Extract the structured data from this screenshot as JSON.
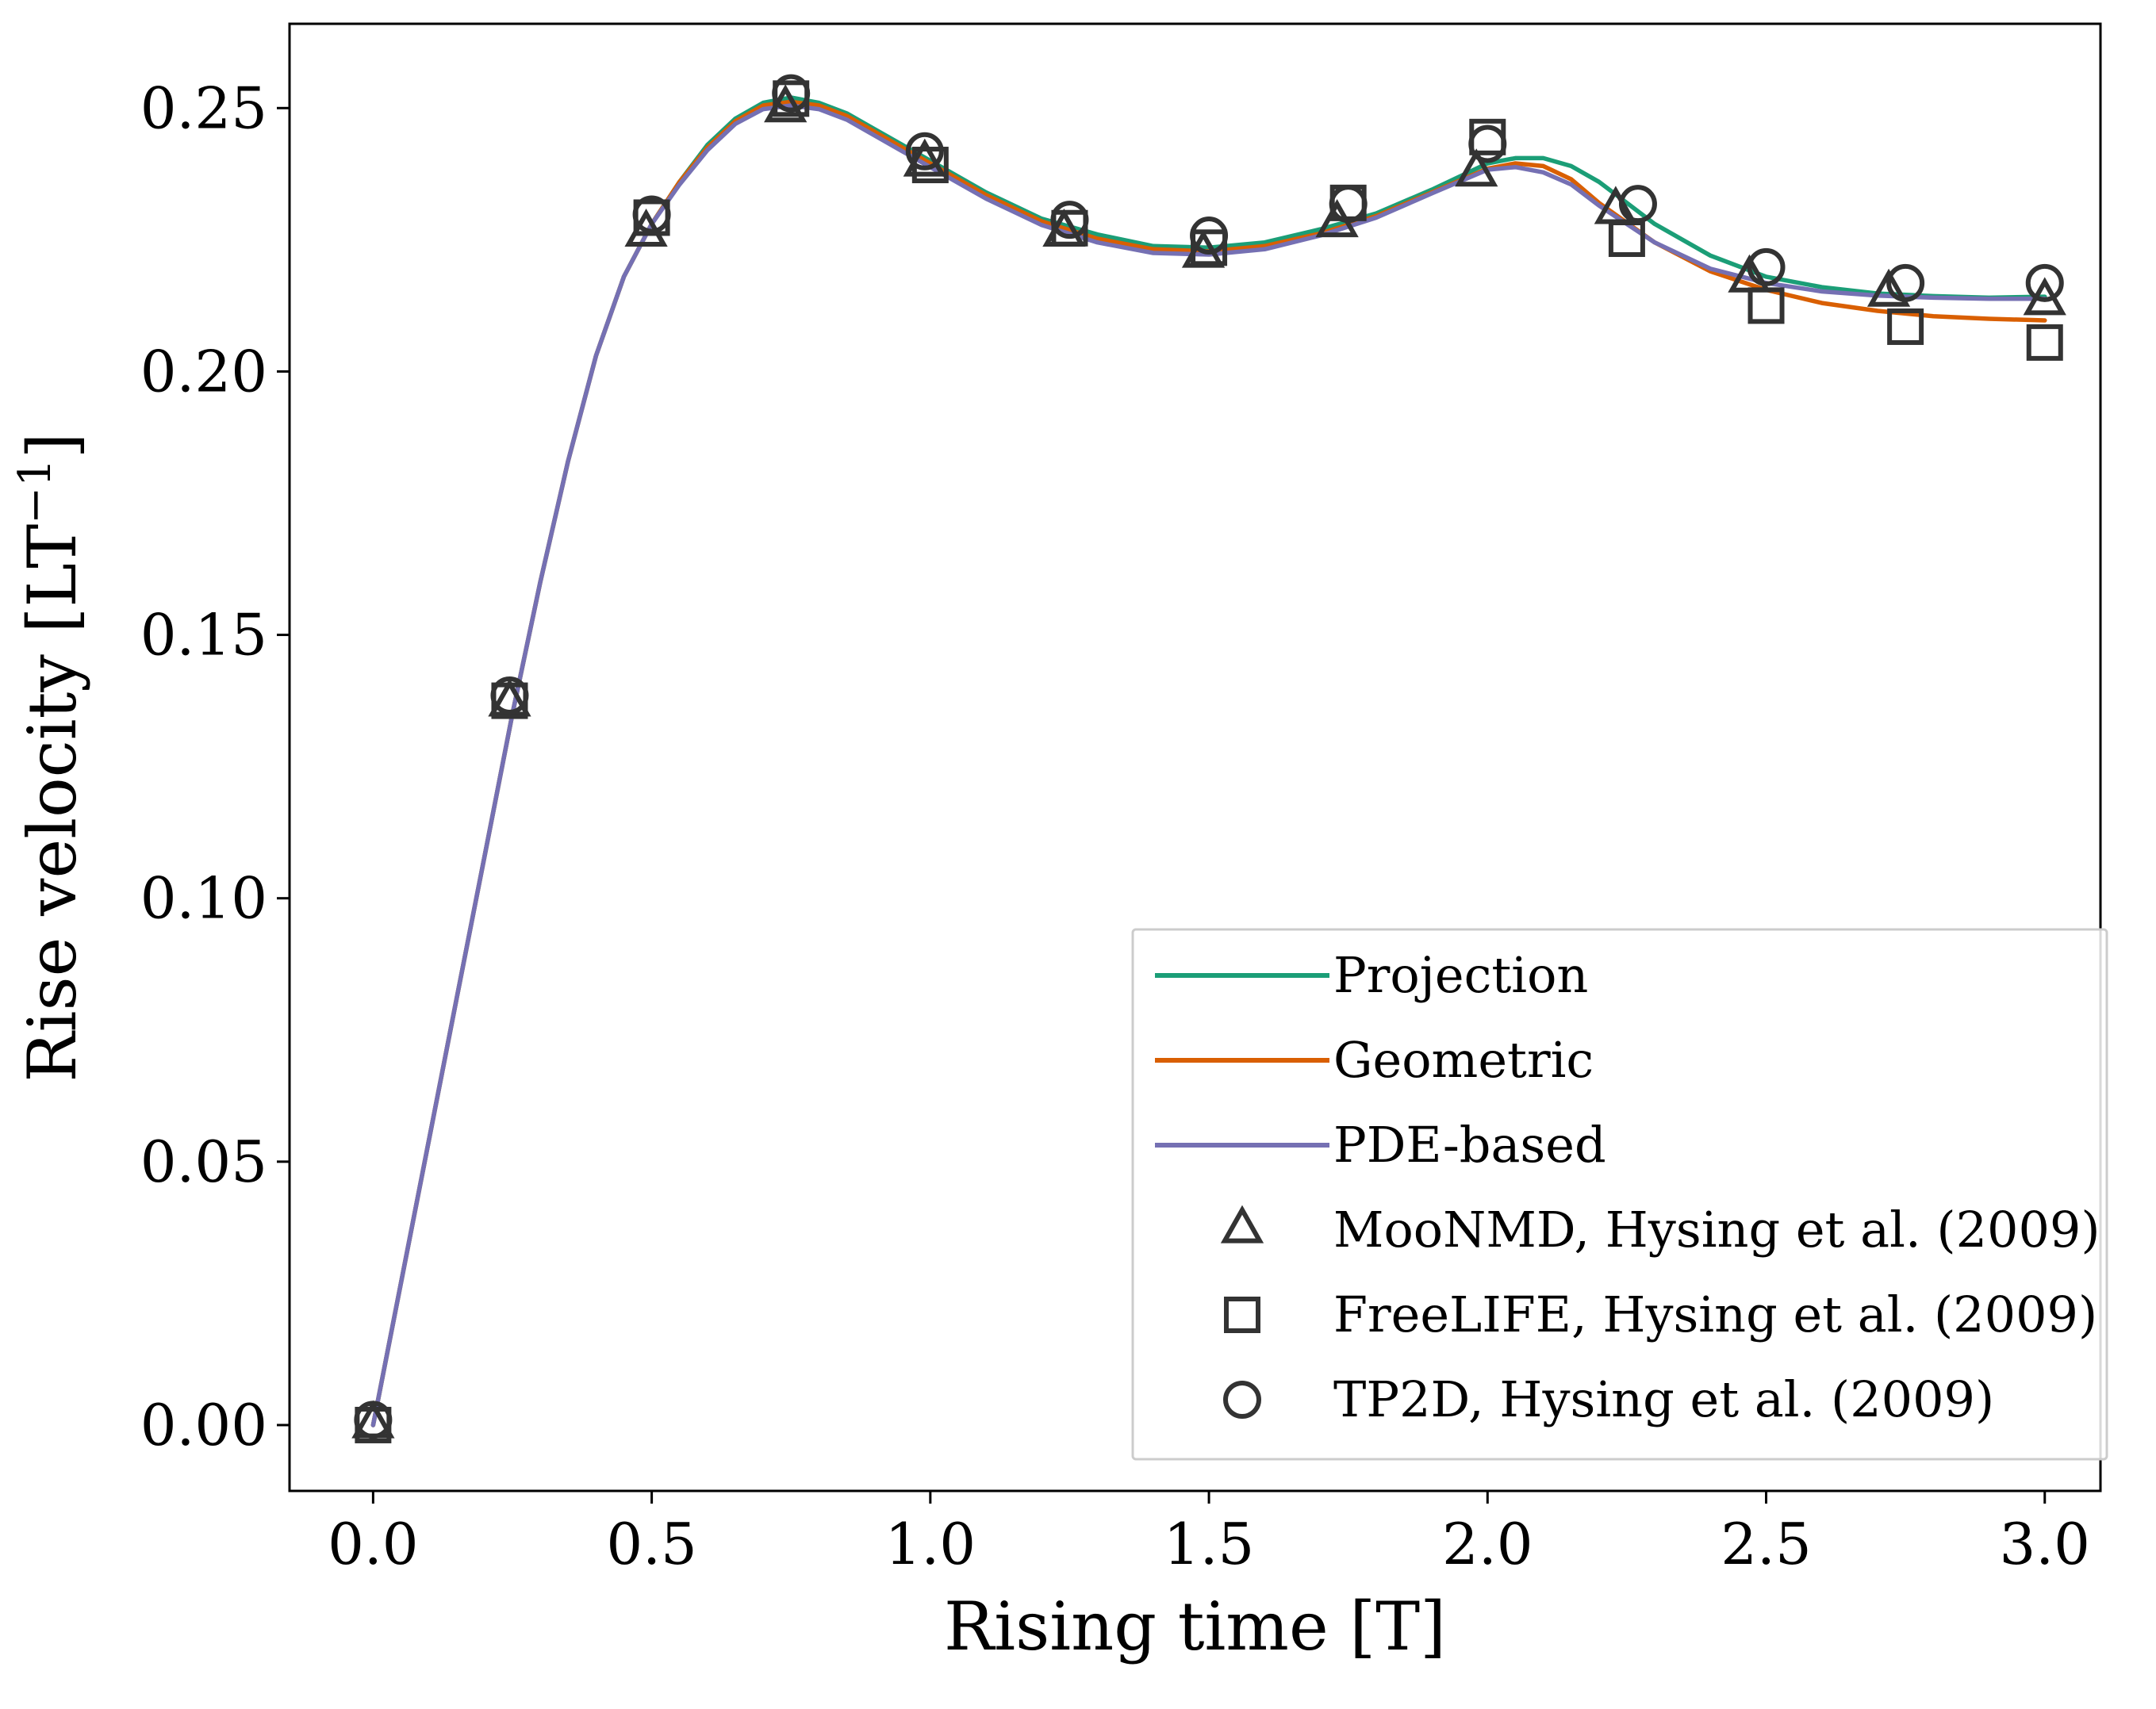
{
  "chart_data": {
    "type": "line",
    "title": "",
    "xlabel": "Rising time [T]",
    "ylabel": "Rise velocity [LT",
    "ylabel_sup": "−1",
    "ylabel_end": "]",
    "xlim": [
      -0.15,
      3.1
    ],
    "ylim": [
      -0.0125,
      0.266
    ],
    "xticks": [
      0.0,
      0.5,
      1.0,
      1.5,
      2.0,
      2.5,
      3.0
    ],
    "xtick_labels": [
      "0.0",
      "0.5",
      "1.0",
      "1.5",
      "2.0",
      "2.5",
      "3.0"
    ],
    "yticks": [
      0.0,
      0.05,
      0.1,
      0.15,
      0.2,
      0.25
    ],
    "ytick_labels": [
      "0.00",
      "0.05",
      "0.10",
      "0.15",
      "0.20",
      "0.25"
    ],
    "grid": false,
    "legend_position": "lower-right",
    "series": [
      {
        "name": "Projection",
        "kind": "line",
        "color": "#1b9e77",
        "points": [
          [
            0.0,
            0.0
          ],
          [
            0.05,
            0.027
          ],
          [
            0.1,
            0.054
          ],
          [
            0.15,
            0.081
          ],
          [
            0.2,
            0.108
          ],
          [
            0.25,
            0.135
          ],
          [
            0.3,
            0.16
          ],
          [
            0.35,
            0.183
          ],
          [
            0.4,
            0.203
          ],
          [
            0.45,
            0.218
          ],
          [
            0.5,
            0.228
          ],
          [
            0.55,
            0.236
          ],
          [
            0.6,
            0.243
          ],
          [
            0.65,
            0.248
          ],
          [
            0.7,
            0.251
          ],
          [
            0.75,
            0.252
          ],
          [
            0.8,
            0.251
          ],
          [
            0.85,
            0.249
          ],
          [
            0.9,
            0.246
          ],
          [
            0.95,
            0.243
          ],
          [
            1.0,
            0.24
          ],
          [
            1.1,
            0.234
          ],
          [
            1.2,
            0.229
          ],
          [
            1.3,
            0.226
          ],
          [
            1.4,
            0.2238
          ],
          [
            1.5,
            0.2235
          ],
          [
            1.6,
            0.2245
          ],
          [
            1.7,
            0.227
          ],
          [
            1.8,
            0.23
          ],
          [
            1.9,
            0.2345
          ],
          [
            2.0,
            0.2395
          ],
          [
            2.05,
            0.2405
          ],
          [
            2.1,
            0.2405
          ],
          [
            2.15,
            0.239
          ],
          [
            2.2,
            0.236
          ],
          [
            2.3,
            0.228
          ],
          [
            2.4,
            0.222
          ],
          [
            2.5,
            0.218
          ],
          [
            2.6,
            0.216
          ],
          [
            2.7,
            0.2148
          ],
          [
            2.8,
            0.2143
          ],
          [
            2.9,
            0.214
          ],
          [
            3.0,
            0.2142
          ]
        ]
      },
      {
        "name": "Geometric",
        "kind": "line",
        "color": "#d95f02",
        "points": [
          [
            0.0,
            0.0
          ],
          [
            0.05,
            0.027
          ],
          [
            0.1,
            0.054
          ],
          [
            0.15,
            0.081
          ],
          [
            0.2,
            0.108
          ],
          [
            0.25,
            0.135
          ],
          [
            0.3,
            0.16
          ],
          [
            0.35,
            0.183
          ],
          [
            0.4,
            0.203
          ],
          [
            0.45,
            0.218
          ],
          [
            0.5,
            0.228
          ],
          [
            0.55,
            0.236
          ],
          [
            0.6,
            0.2425
          ],
          [
            0.65,
            0.2475
          ],
          [
            0.7,
            0.2505
          ],
          [
            0.75,
            0.2512
          ],
          [
            0.8,
            0.2505
          ],
          [
            0.85,
            0.2485
          ],
          [
            0.9,
            0.2455
          ],
          [
            0.95,
            0.2425
          ],
          [
            1.0,
            0.2395
          ],
          [
            1.1,
            0.2335
          ],
          [
            1.2,
            0.2285
          ],
          [
            1.3,
            0.2252
          ],
          [
            1.4,
            0.2232
          ],
          [
            1.5,
            0.2228
          ],
          [
            1.6,
            0.2238
          ],
          [
            1.7,
            0.2262
          ],
          [
            1.8,
            0.2295
          ],
          [
            1.9,
            0.234
          ],
          [
            2.0,
            0.2385
          ],
          [
            2.05,
            0.2395
          ],
          [
            2.1,
            0.239
          ],
          [
            2.15,
            0.2365
          ],
          [
            2.2,
            0.232
          ],
          [
            2.3,
            0.2245
          ],
          [
            2.4,
            0.219
          ],
          [
            2.5,
            0.2155
          ],
          [
            2.6,
            0.213
          ],
          [
            2.7,
            0.2115
          ],
          [
            2.8,
            0.2105
          ],
          [
            2.9,
            0.21
          ],
          [
            3.0,
            0.2097
          ]
        ]
      },
      {
        "name": "PDE-based",
        "kind": "line",
        "color": "#7570b3",
        "points": [
          [
            0.0,
            0.0
          ],
          [
            0.05,
            0.027
          ],
          [
            0.1,
            0.054
          ],
          [
            0.15,
            0.081
          ],
          [
            0.2,
            0.108
          ],
          [
            0.25,
            0.135
          ],
          [
            0.3,
            0.16
          ],
          [
            0.35,
            0.183
          ],
          [
            0.4,
            0.203
          ],
          [
            0.45,
            0.218
          ],
          [
            0.5,
            0.228
          ],
          [
            0.55,
            0.2355
          ],
          [
            0.6,
            0.242
          ],
          [
            0.65,
            0.247
          ],
          [
            0.7,
            0.2498
          ],
          [
            0.75,
            0.2505
          ],
          [
            0.8,
            0.2498
          ],
          [
            0.85,
            0.2478
          ],
          [
            0.9,
            0.2448
          ],
          [
            0.95,
            0.2418
          ],
          [
            1.0,
            0.2388
          ],
          [
            1.1,
            0.2328
          ],
          [
            1.2,
            0.2278
          ],
          [
            1.3,
            0.2245
          ],
          [
            1.4,
            0.2225
          ],
          [
            1.5,
            0.2222
          ],
          [
            1.6,
            0.2232
          ],
          [
            1.7,
            0.2258
          ],
          [
            1.8,
            0.2292
          ],
          [
            1.9,
            0.2338
          ],
          [
            2.0,
            0.2383
          ],
          [
            2.05,
            0.2388
          ],
          [
            2.1,
            0.2378
          ],
          [
            2.15,
            0.2355
          ],
          [
            2.2,
            0.2315
          ],
          [
            2.3,
            0.2245
          ],
          [
            2.4,
            0.2195
          ],
          [
            2.5,
            0.2168
          ],
          [
            2.6,
            0.2152
          ],
          [
            2.7,
            0.2144
          ],
          [
            2.8,
            0.214
          ],
          [
            2.9,
            0.2138
          ],
          [
            3.0,
            0.2138
          ]
        ]
      },
      {
        "name": "MooNMD, Hysing et al. (2009)",
        "kind": "marker",
        "marker": "triangle",
        "color": "#333333",
        "points": [
          [
            0.0,
            0.0
          ],
          [
            0.245,
            0.137
          ],
          [
            0.49,
            0.2262
          ],
          [
            0.74,
            0.2498
          ],
          [
            0.99,
            0.2395
          ],
          [
            1.24,
            0.2262
          ],
          [
            1.49,
            0.2222
          ],
          [
            1.73,
            0.228
          ],
          [
            1.98,
            0.2376
          ],
          [
            2.23,
            0.2305
          ],
          [
            2.47,
            0.2175
          ],
          [
            2.72,
            0.2148
          ],
          [
            3.0,
            0.2132
          ]
        ]
      },
      {
        "name": "FreeLIFE, Hysing et al. (2009)",
        "kind": "marker",
        "marker": "square",
        "color": "#333333",
        "points": [
          [
            0.0,
            0.0
          ],
          [
            0.245,
            0.1375
          ],
          [
            0.5,
            0.2292
          ],
          [
            0.75,
            0.2518
          ],
          [
            1.0,
            0.2392
          ],
          [
            1.25,
            0.2272
          ],
          [
            1.5,
            0.2235
          ],
          [
            1.75,
            0.232
          ],
          [
            2.0,
            0.2445
          ],
          [
            2.25,
            0.2252
          ],
          [
            2.5,
            0.2125
          ],
          [
            2.75,
            0.2085
          ],
          [
            3.0,
            0.2055
          ]
        ]
      },
      {
        "name": "TP2D, Hysing et al. (2009)",
        "kind": "marker",
        "marker": "circle",
        "color": "#333333",
        "points": [
          [
            0.0,
            0.001
          ],
          [
            0.245,
            0.1385
          ],
          [
            0.5,
            0.2298
          ],
          [
            0.75,
            0.2528
          ],
          [
            0.99,
            0.2418
          ],
          [
            1.25,
            0.2288
          ],
          [
            1.5,
            0.2258
          ],
          [
            1.75,
            0.2318
          ],
          [
            2.0,
            0.2432
          ],
          [
            2.27,
            0.2318
          ],
          [
            2.5,
            0.2198
          ],
          [
            2.75,
            0.2168
          ],
          [
            3.0,
            0.2168
          ]
        ]
      }
    ]
  }
}
